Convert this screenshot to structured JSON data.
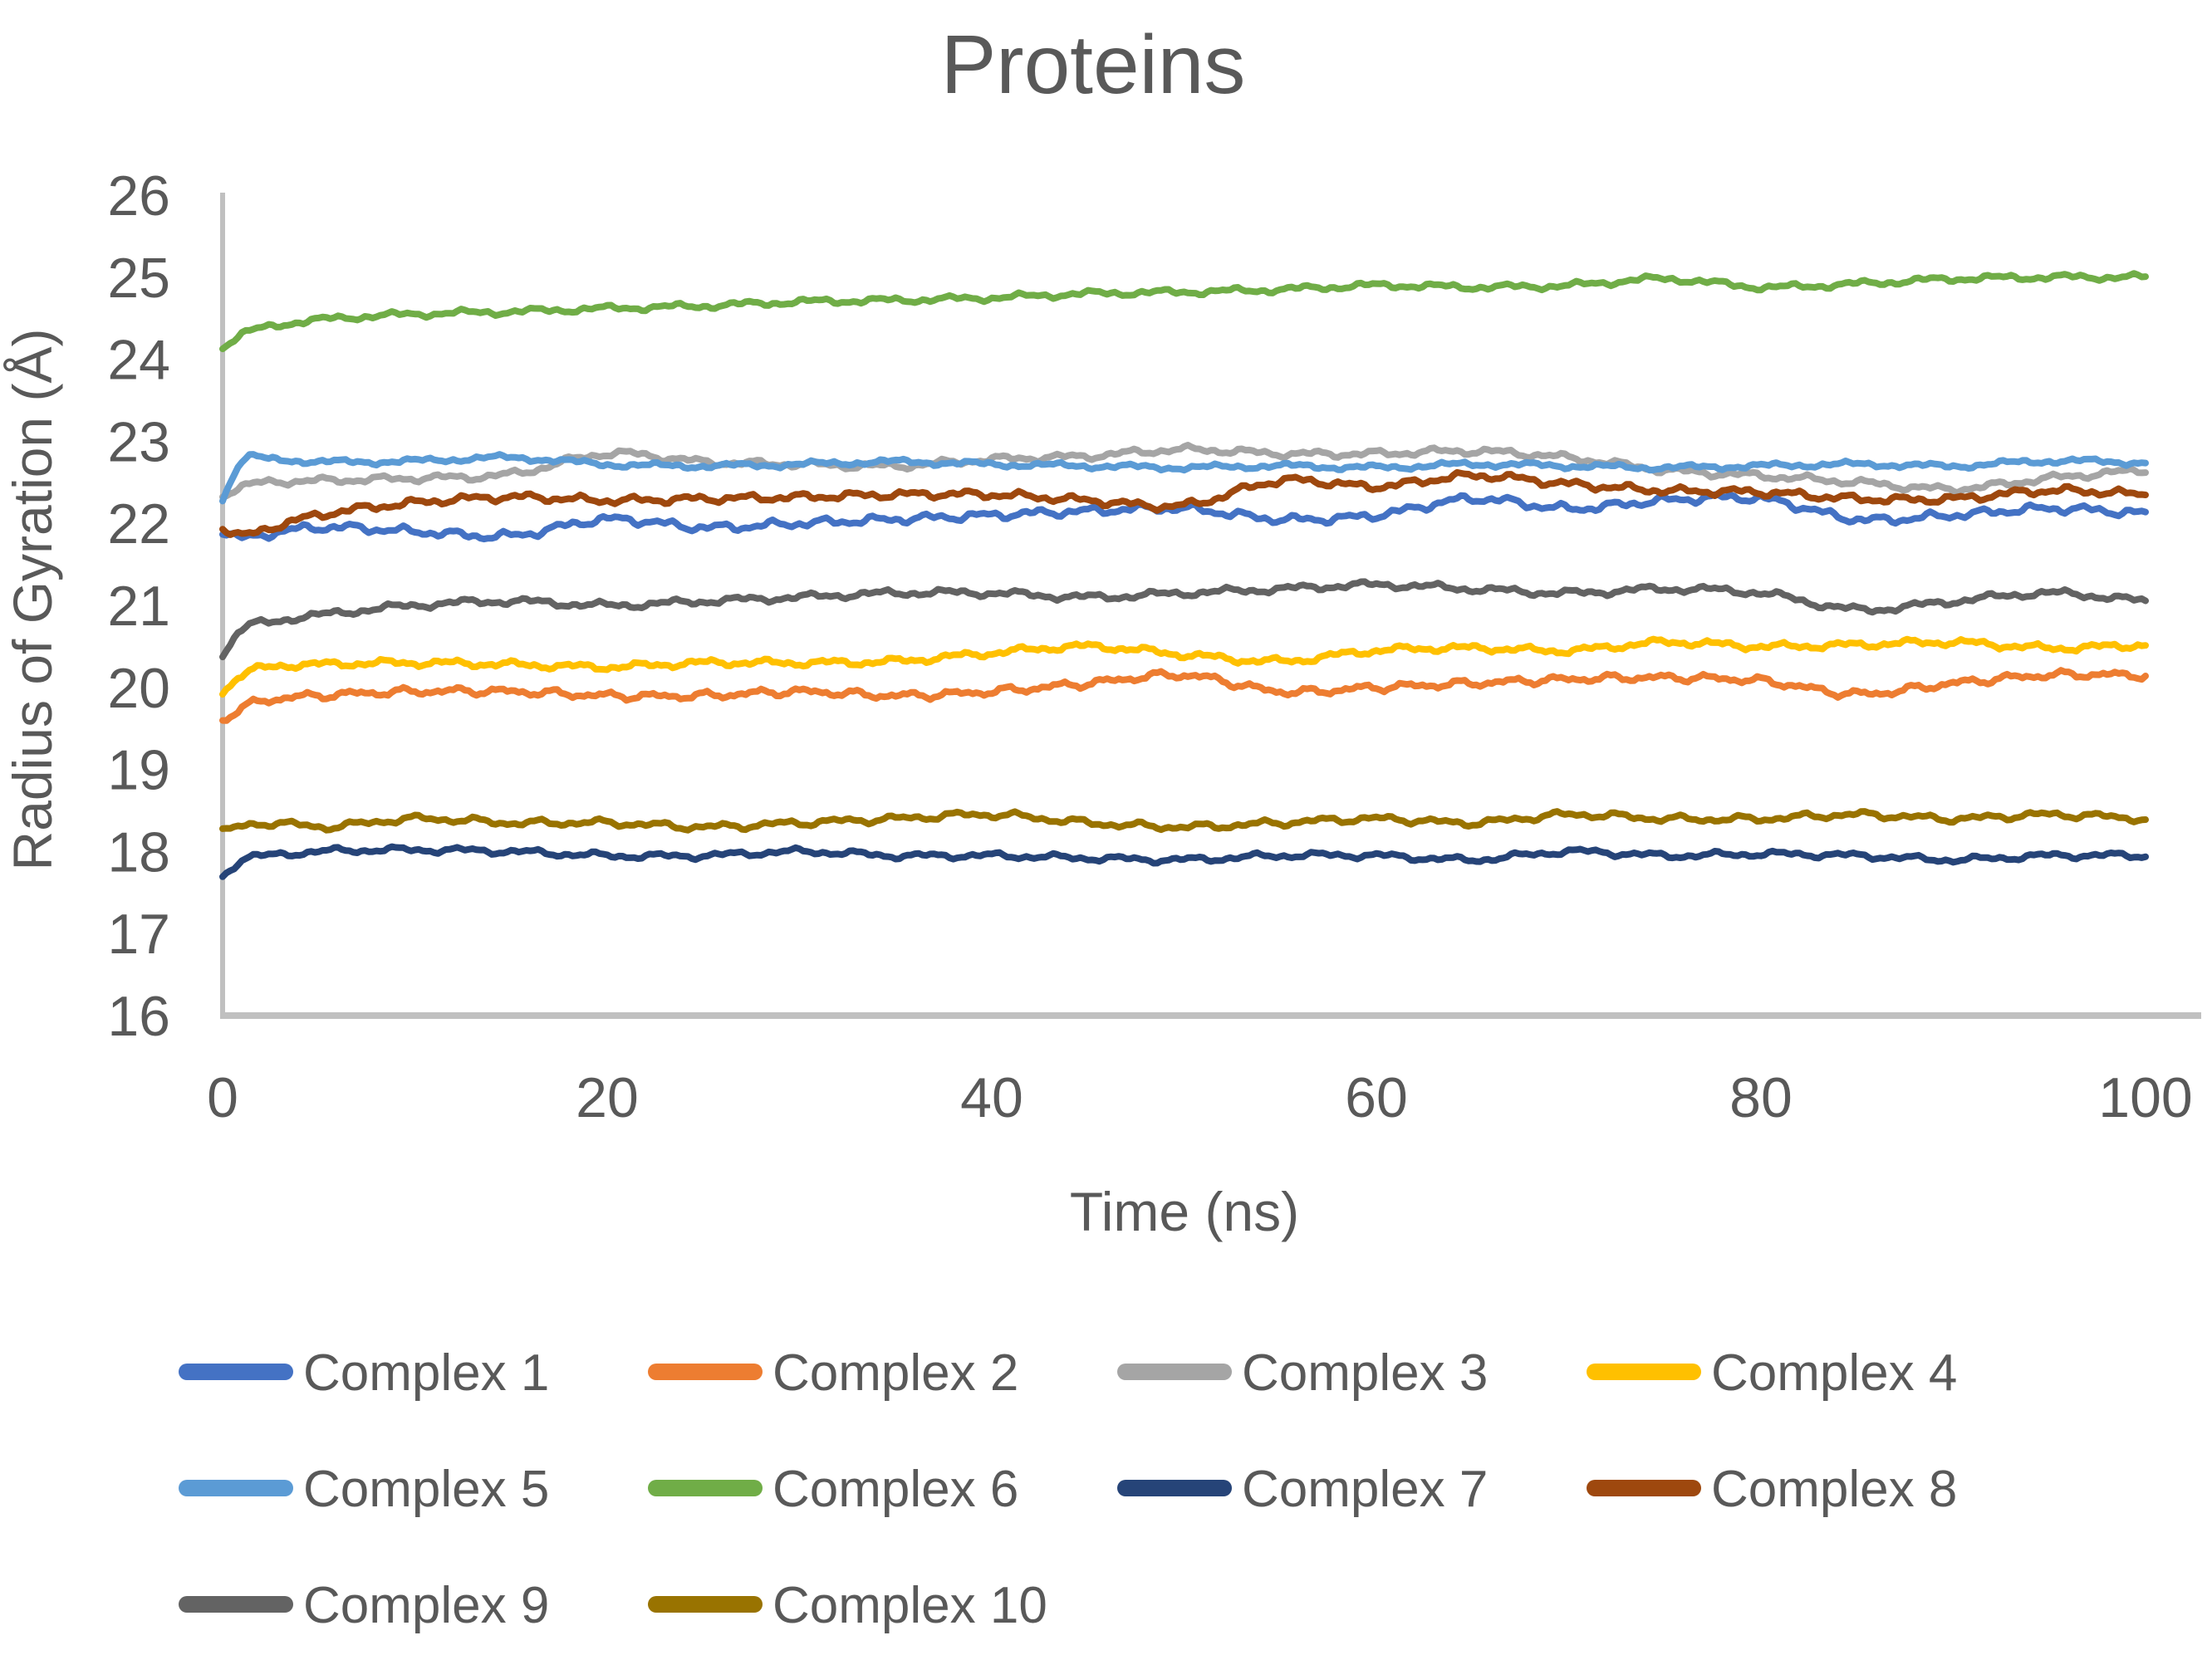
{
  "styles": {
    "text_color": "#595959",
    "axis_color": "#C0C0C0",
    "background": "#FFFFFF"
  },
  "chart_data": {
    "type": "line",
    "title": "Proteins",
    "xlabel": "Time (ns)",
    "ylabel": "Radius of Gyration (Å)",
    "xlim": [
      0,
      100
    ],
    "ylim": [
      16,
      26
    ],
    "xticks": [
      0,
      20,
      40,
      60,
      80,
      100
    ],
    "yticks": [
      16,
      17,
      18,
      19,
      20,
      21,
      22,
      23,
      24,
      25,
      26
    ],
    "grid": false,
    "legend_position": "bottom",
    "noise_amplitude_default": 0.05,
    "x_anchors_ns": [
      0,
      1,
      2.5,
      5,
      10,
      15,
      20,
      25,
      30,
      35,
      40,
      45,
      50,
      55,
      60,
      65,
      70,
      75,
      80,
      85,
      90,
      95,
      100
    ],
    "series": [
      {
        "name": "Complex 1",
        "color": "#4472C4",
        "noise": 0.06,
        "values": [
          21.9,
          21.82,
          21.88,
          21.95,
          21.9,
          21.85,
          22.05,
          21.95,
          22.0,
          22.05,
          22.1,
          22.15,
          22.18,
          22.05,
          22.1,
          22.3,
          22.18,
          22.28,
          22.3,
          22.05,
          22.1,
          22.18,
          22.12
        ]
      },
      {
        "name": "Complex 2",
        "color": "#ED7D31",
        "noise": 0.055,
        "values": [
          19.6,
          19.75,
          19.85,
          19.9,
          19.95,
          19.95,
          19.9,
          19.9,
          19.95,
          19.9,
          19.95,
          20.05,
          20.15,
          19.95,
          20.0,
          20.05,
          20.1,
          20.12,
          20.08,
          19.92,
          20.05,
          20.15,
          20.15
        ]
      },
      {
        "name": "Complex 3",
        "color": "#A5A5A5",
        "noise": 0.05,
        "values": [
          22.35,
          22.45,
          22.5,
          22.52,
          22.55,
          22.6,
          22.85,
          22.75,
          22.72,
          22.7,
          22.78,
          22.82,
          22.9,
          22.85,
          22.85,
          22.88,
          22.8,
          22.65,
          22.58,
          22.5,
          22.42,
          22.55,
          22.65
        ]
      },
      {
        "name": "Complex 4",
        "color": "#FFC000",
        "noise": 0.05,
        "values": [
          19.95,
          20.15,
          20.25,
          20.28,
          20.3,
          20.28,
          20.25,
          20.3,
          20.3,
          20.32,
          20.42,
          20.5,
          20.4,
          20.32,
          20.45,
          20.48,
          20.45,
          20.55,
          20.5,
          20.52,
          20.55,
          20.48,
          20.52
        ]
      },
      {
        "name": "Complex 5",
        "color": "#5B9BD5",
        "noise": 0.04,
        "values": [
          22.3,
          22.75,
          22.78,
          22.75,
          22.76,
          22.8,
          22.72,
          22.7,
          22.72,
          22.75,
          22.72,
          22.7,
          22.68,
          22.7,
          22.68,
          22.72,
          22.7,
          22.68,
          22.7,
          22.72,
          22.7,
          22.76,
          22.74
        ]
      },
      {
        "name": "Complex 6",
        "color": "#70AD47",
        "noise": 0.045,
        "values": [
          24.15,
          24.3,
          24.4,
          24.48,
          24.55,
          24.58,
          24.62,
          24.65,
          24.7,
          24.72,
          24.75,
          24.8,
          24.82,
          24.85,
          24.9,
          24.88,
          24.9,
          24.98,
          24.88,
          24.92,
          24.98,
          25.0,
          25.0
        ]
      },
      {
        "name": "Complex 7",
        "color": "#264478",
        "noise": 0.045,
        "values": [
          17.7,
          17.9,
          17.95,
          18.0,
          18.02,
          18.0,
          17.95,
          17.95,
          18.0,
          17.95,
          17.95,
          17.92,
          17.9,
          17.95,
          17.95,
          17.9,
          18.0,
          17.95,
          17.97,
          17.95,
          17.9,
          17.95,
          17.95
        ]
      },
      {
        "name": "Complex 8",
        "color": "#9E480E",
        "noise": 0.055,
        "values": [
          21.95,
          21.85,
          21.95,
          22.1,
          22.25,
          22.32,
          22.28,
          22.3,
          22.32,
          22.35,
          22.35,
          22.28,
          22.22,
          22.52,
          22.45,
          22.58,
          22.48,
          22.4,
          22.38,
          22.3,
          22.3,
          22.4,
          22.35
        ]
      },
      {
        "name": "Complex 9",
        "color": "#636363",
        "noise": 0.05,
        "values": [
          20.4,
          20.7,
          20.8,
          20.88,
          21.0,
          21.05,
          21.0,
          21.05,
          21.1,
          21.15,
          21.15,
          21.1,
          21.15,
          21.2,
          21.25,
          21.2,
          21.15,
          21.2,
          21.15,
          20.95,
          21.05,
          21.15,
          21.05
        ]
      },
      {
        "name": "Complex 10",
        "color": "#997300",
        "noise": 0.05,
        "values": [
          18.25,
          18.3,
          18.35,
          18.3,
          18.4,
          18.35,
          18.35,
          18.3,
          18.35,
          18.4,
          18.45,
          18.35,
          18.3,
          18.35,
          18.4,
          18.35,
          18.45,
          18.4,
          18.4,
          18.45,
          18.4,
          18.45,
          18.4
        ]
      }
    ]
  }
}
